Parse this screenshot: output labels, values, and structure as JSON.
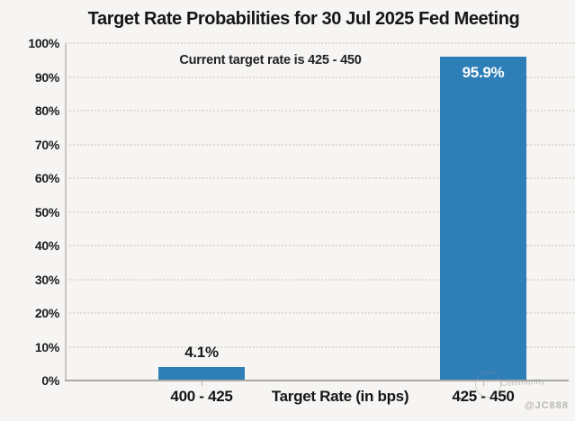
{
  "chart_data": {
    "type": "bar",
    "title": "Target Rate Probabilities for 30 Jul 2025 Fed Meeting",
    "subtitle": "Current target rate is 425 - 450",
    "xlabel": "Target Rate (in bps)",
    "ylabel": "",
    "categories": [
      "400 - 425",
      "425 - 450"
    ],
    "values": [
      4.1,
      95.9
    ],
    "value_labels": [
      "4.1%",
      "95.9%"
    ],
    "y_tick_labels": [
      "0%",
      "10%",
      "20%",
      "30%",
      "40%",
      "50%",
      "60%",
      "70%",
      "80%",
      "90%",
      "100%"
    ],
    "ylim": [
      0,
      100
    ],
    "grid": "horizontal-dotted",
    "legend": "none",
    "bar_color": "#2e7eb7",
    "inside_label_color": "#ffffff",
    "outside_label_color": "#1b1b1b"
  },
  "watermark": {
    "line1": "Community",
    "line2": "@JC888"
  }
}
